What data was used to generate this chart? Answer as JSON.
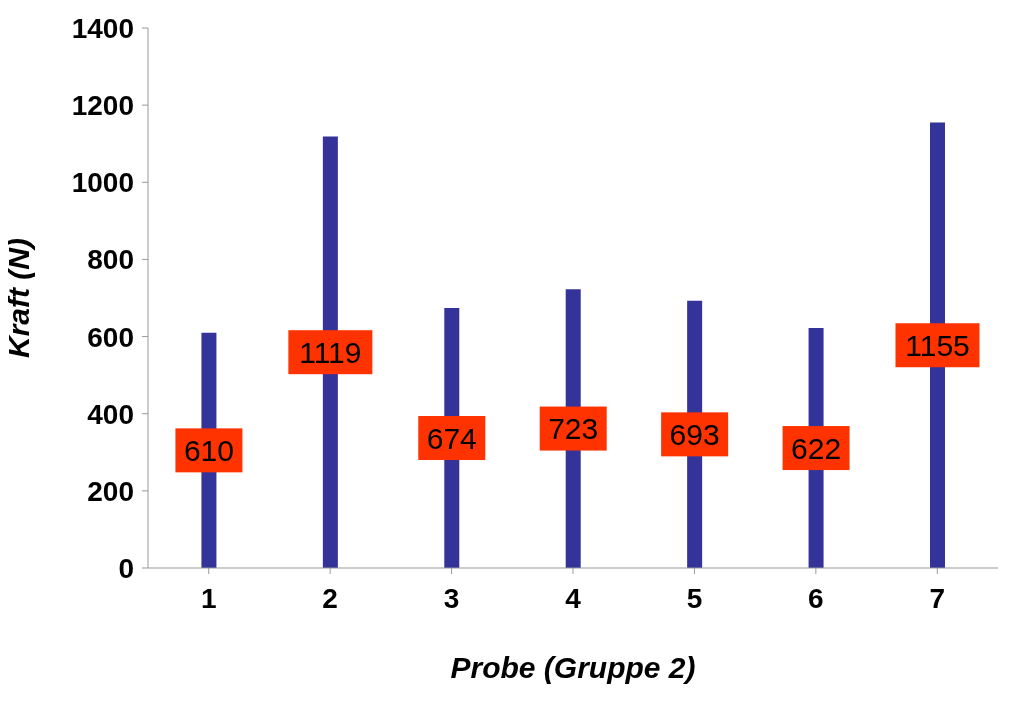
{
  "chart_data": {
    "type": "bar",
    "xlabel": "Probe (Gruppe 2)",
    "ylabel": "Kraft (N)",
    "categories": [
      "1",
      "2",
      "3",
      "4",
      "5",
      "6",
      "7"
    ],
    "values": [
      610,
      1119,
      674,
      723,
      693,
      622,
      1155
    ],
    "color": "#333399",
    "ylim": [
      0,
      1400
    ],
    "yticks": [
      0,
      200,
      400,
      600,
      800,
      1000,
      1200,
      1400
    ],
    "grid": false,
    "data_labels": true
  }
}
